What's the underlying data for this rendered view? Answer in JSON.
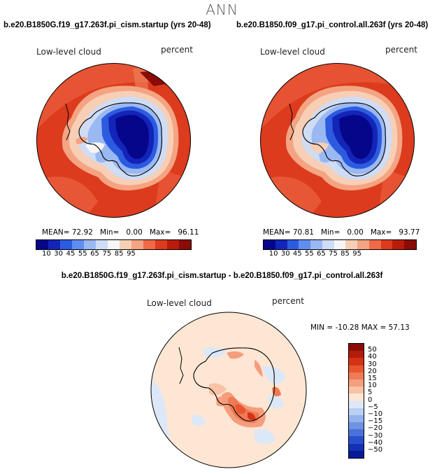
{
  "suptitle": "ANN",
  "panels": [
    {
      "id": "case1",
      "case_title": "b.e20.B1850G.f19_g17.263f.pi_cism.startup (yrs 20-48)",
      "variable": "Low-level cloud",
      "units": "percent",
      "mean_label": "MEAN=",
      "mean": "72.92",
      "min_label": "Min=",
      "min": "0.00",
      "max_label": "Max=",
      "max": "96.11"
    },
    {
      "id": "case2",
      "case_title": "b.e20.B1850.f09_g17.pi_control.all.263f (yrs 20-48)",
      "variable": "Low-level cloud",
      "units": "percent",
      "mean_label": "MEAN=",
      "mean": "70.81",
      "min_label": "Min=",
      "min": "0.00",
      "max_label": "Max=",
      "max": "93.77"
    }
  ],
  "diff_panel": {
    "title": "b.e20.B1850G.f19_g17.263f.pi_cism.startup - b.e20.B1850.f09_g17.pi_control.all.263f",
    "variable": "Low-level cloud",
    "units": "percent",
    "min_label": "MIN =",
    "min": "-10.28",
    "max_label": "MAX =",
    "max": "57.13"
  },
  "chart_data": [
    {
      "type": "heatmap",
      "projection": "south-polar-stereographic",
      "title": "b.e20.B1850G.f19_g17.263f.pi_cism.startup (yrs 20-48)",
      "variable": "Low-level cloud",
      "units": "percent",
      "mean": 72.92,
      "min": 0.0,
      "max": 96.11,
      "contour_levels": [
        10,
        30,
        45,
        55,
        65,
        75,
        85,
        95
      ],
      "colorbar_tick_labels": [
        "10",
        "30",
        "45",
        "55",
        "65",
        "75",
        "85",
        "95"
      ],
      "colorbar_colors": [
        "#05068a",
        "#1325b8",
        "#2d5be0",
        "#5f8ef0",
        "#9ab8f2",
        "#cfdcf5",
        "#f6f6f6",
        "#f7cfb6",
        "#f4a482",
        "#ef6a46",
        "#dc3b1e",
        "#b91c0b",
        "#8a0c06"
      ]
    },
    {
      "type": "heatmap",
      "projection": "south-polar-stereographic",
      "title": "b.e20.B1850.f09_g17.pi_control.all.263f (yrs 20-48)",
      "variable": "Low-level cloud",
      "units": "percent",
      "mean": 70.81,
      "min": 0.0,
      "max": 93.77,
      "contour_levels": [
        10,
        30,
        45,
        55,
        65,
        75,
        85,
        95
      ],
      "colorbar_tick_labels": [
        "10",
        "30",
        "45",
        "55",
        "65",
        "75",
        "85",
        "95"
      ],
      "colorbar_colors": [
        "#05068a",
        "#1325b8",
        "#2d5be0",
        "#5f8ef0",
        "#9ab8f2",
        "#cfdcf5",
        "#f6f6f6",
        "#f7cfb6",
        "#f4a482",
        "#ef6a46",
        "#dc3b1e",
        "#b91c0b",
        "#8a0c06"
      ]
    },
    {
      "type": "heatmap",
      "projection": "south-polar-stereographic",
      "title": "b.e20.B1850G.f19_g17.263f.pi_cism.startup - b.e20.B1850.f09_g17.pi_control.all.263f",
      "variable": "Low-level cloud",
      "units": "percent",
      "min": -10.28,
      "max": 57.13,
      "contour_levels": [
        -50,
        -40,
        -30,
        -20,
        -15,
        -10,
        -5,
        0,
        5,
        10,
        15,
        20,
        30,
        40,
        50
      ],
      "colorbar_tick_labels": [
        "50",
        "40",
        "30",
        "20",
        "15",
        "10",
        "5",
        "0",
        "−5",
        "−10",
        "−15",
        "−20",
        "−30",
        "−40",
        "−50"
      ],
      "colorbar_colors": [
        "#8a0c06",
        "#b31b0a",
        "#d63316",
        "#e8562f",
        "#f07a55",
        "#f59e7d",
        "#f9c3a6",
        "#fde6d3",
        "#dce8f7",
        "#b9d0f2",
        "#94b3ec",
        "#6e93e4",
        "#4a72da",
        "#2a4fcc",
        "#1430b5",
        "#071a96"
      ]
    }
  ]
}
